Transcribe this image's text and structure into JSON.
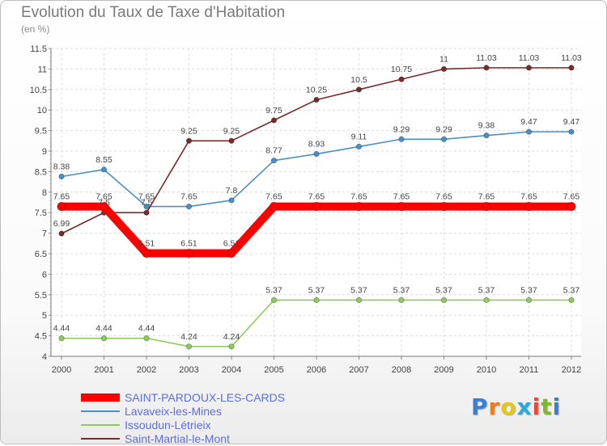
{
  "header": {
    "title": "Evolution du Taux de Taxe d'Habitation",
    "unit": "(en %)"
  },
  "brand": {
    "text": "Proxiti",
    "letter_colors": [
      "#3b7fd4",
      "#e67e22",
      "#e8c51c",
      "#2ea8d8",
      "#e74c3c",
      "#7fb82a",
      "#3b7fd4"
    ]
  },
  "chart_data": {
    "type": "line",
    "x": [
      "2000",
      "2001",
      "2002",
      "2003",
      "2004",
      "2005",
      "2006",
      "2007",
      "2008",
      "2009",
      "2010",
      "2011",
      "2012"
    ],
    "ylim": [
      4,
      11.5
    ],
    "yticks": [
      "4",
      "4.5",
      "5",
      "5.5",
      "6",
      "6.5",
      "7",
      "7.5",
      "8",
      "8.5",
      "9",
      "9.5",
      "10",
      "10.5",
      "11",
      "11.5"
    ],
    "grid": true,
    "legend_position": "bottom-left",
    "series": [
      {
        "name": "SAINT-PARDOUX-LES-CARDS",
        "color": "#ff0000",
        "values": [
          7.65,
          7.65,
          6.51,
          6.51,
          6.51,
          7.65,
          7.65,
          7.65,
          7.65,
          7.65,
          7.65,
          7.65,
          7.65
        ],
        "labels": [
          "7.65",
          "7.65",
          "6.51",
          "6.51",
          "6.51",
          "7.65",
          "7.65",
          "7.65",
          "7.65",
          "7.65",
          "7.65",
          "7.65",
          "7.65"
        ]
      },
      {
        "name": "Lavaveix-les-Mines",
        "color": "#4a90c8",
        "values": [
          8.38,
          8.55,
          7.65,
          7.65,
          7.8,
          8.77,
          8.93,
          9.11,
          9.29,
          9.29,
          9.38,
          9.47,
          9.47
        ],
        "labels": [
          "8.38",
          "8.55",
          "7.65",
          "7.65",
          "7.8",
          "8.77",
          "8.93",
          "9.11",
          "9.29",
          "9.29",
          "9.38",
          "9.47",
          "9.47"
        ]
      },
      {
        "name": "Issoudun-Létrieix",
        "color": "#8fcc5a",
        "values": [
          4.44,
          4.44,
          4.44,
          4.24,
          4.24,
          5.37,
          5.37,
          5.37,
          5.37,
          5.37,
          5.37,
          5.37,
          5.37
        ],
        "labels": [
          "4.44",
          "4.44",
          "4.44",
          "4.24",
          "4.24",
          "5.37",
          "5.37",
          "5.37",
          "5.37",
          "5.37",
          "5.37",
          "5.37",
          "5.37"
        ]
      },
      {
        "name": "Saint-Martial-le-Mont",
        "color": "#7a2b2b",
        "values": [
          6.99,
          7.5,
          7.5,
          9.25,
          9.25,
          9.75,
          10.25,
          10.5,
          10.75,
          11,
          11.03,
          11.03,
          11.03
        ],
        "labels": [
          "6.99",
          "7.5",
          "7.5",
          "9.25",
          "9.25",
          "9.75",
          "10.25",
          "10.5",
          "10.75",
          "11",
          "11.03",
          "11.03",
          "11.03"
        ]
      }
    ]
  }
}
